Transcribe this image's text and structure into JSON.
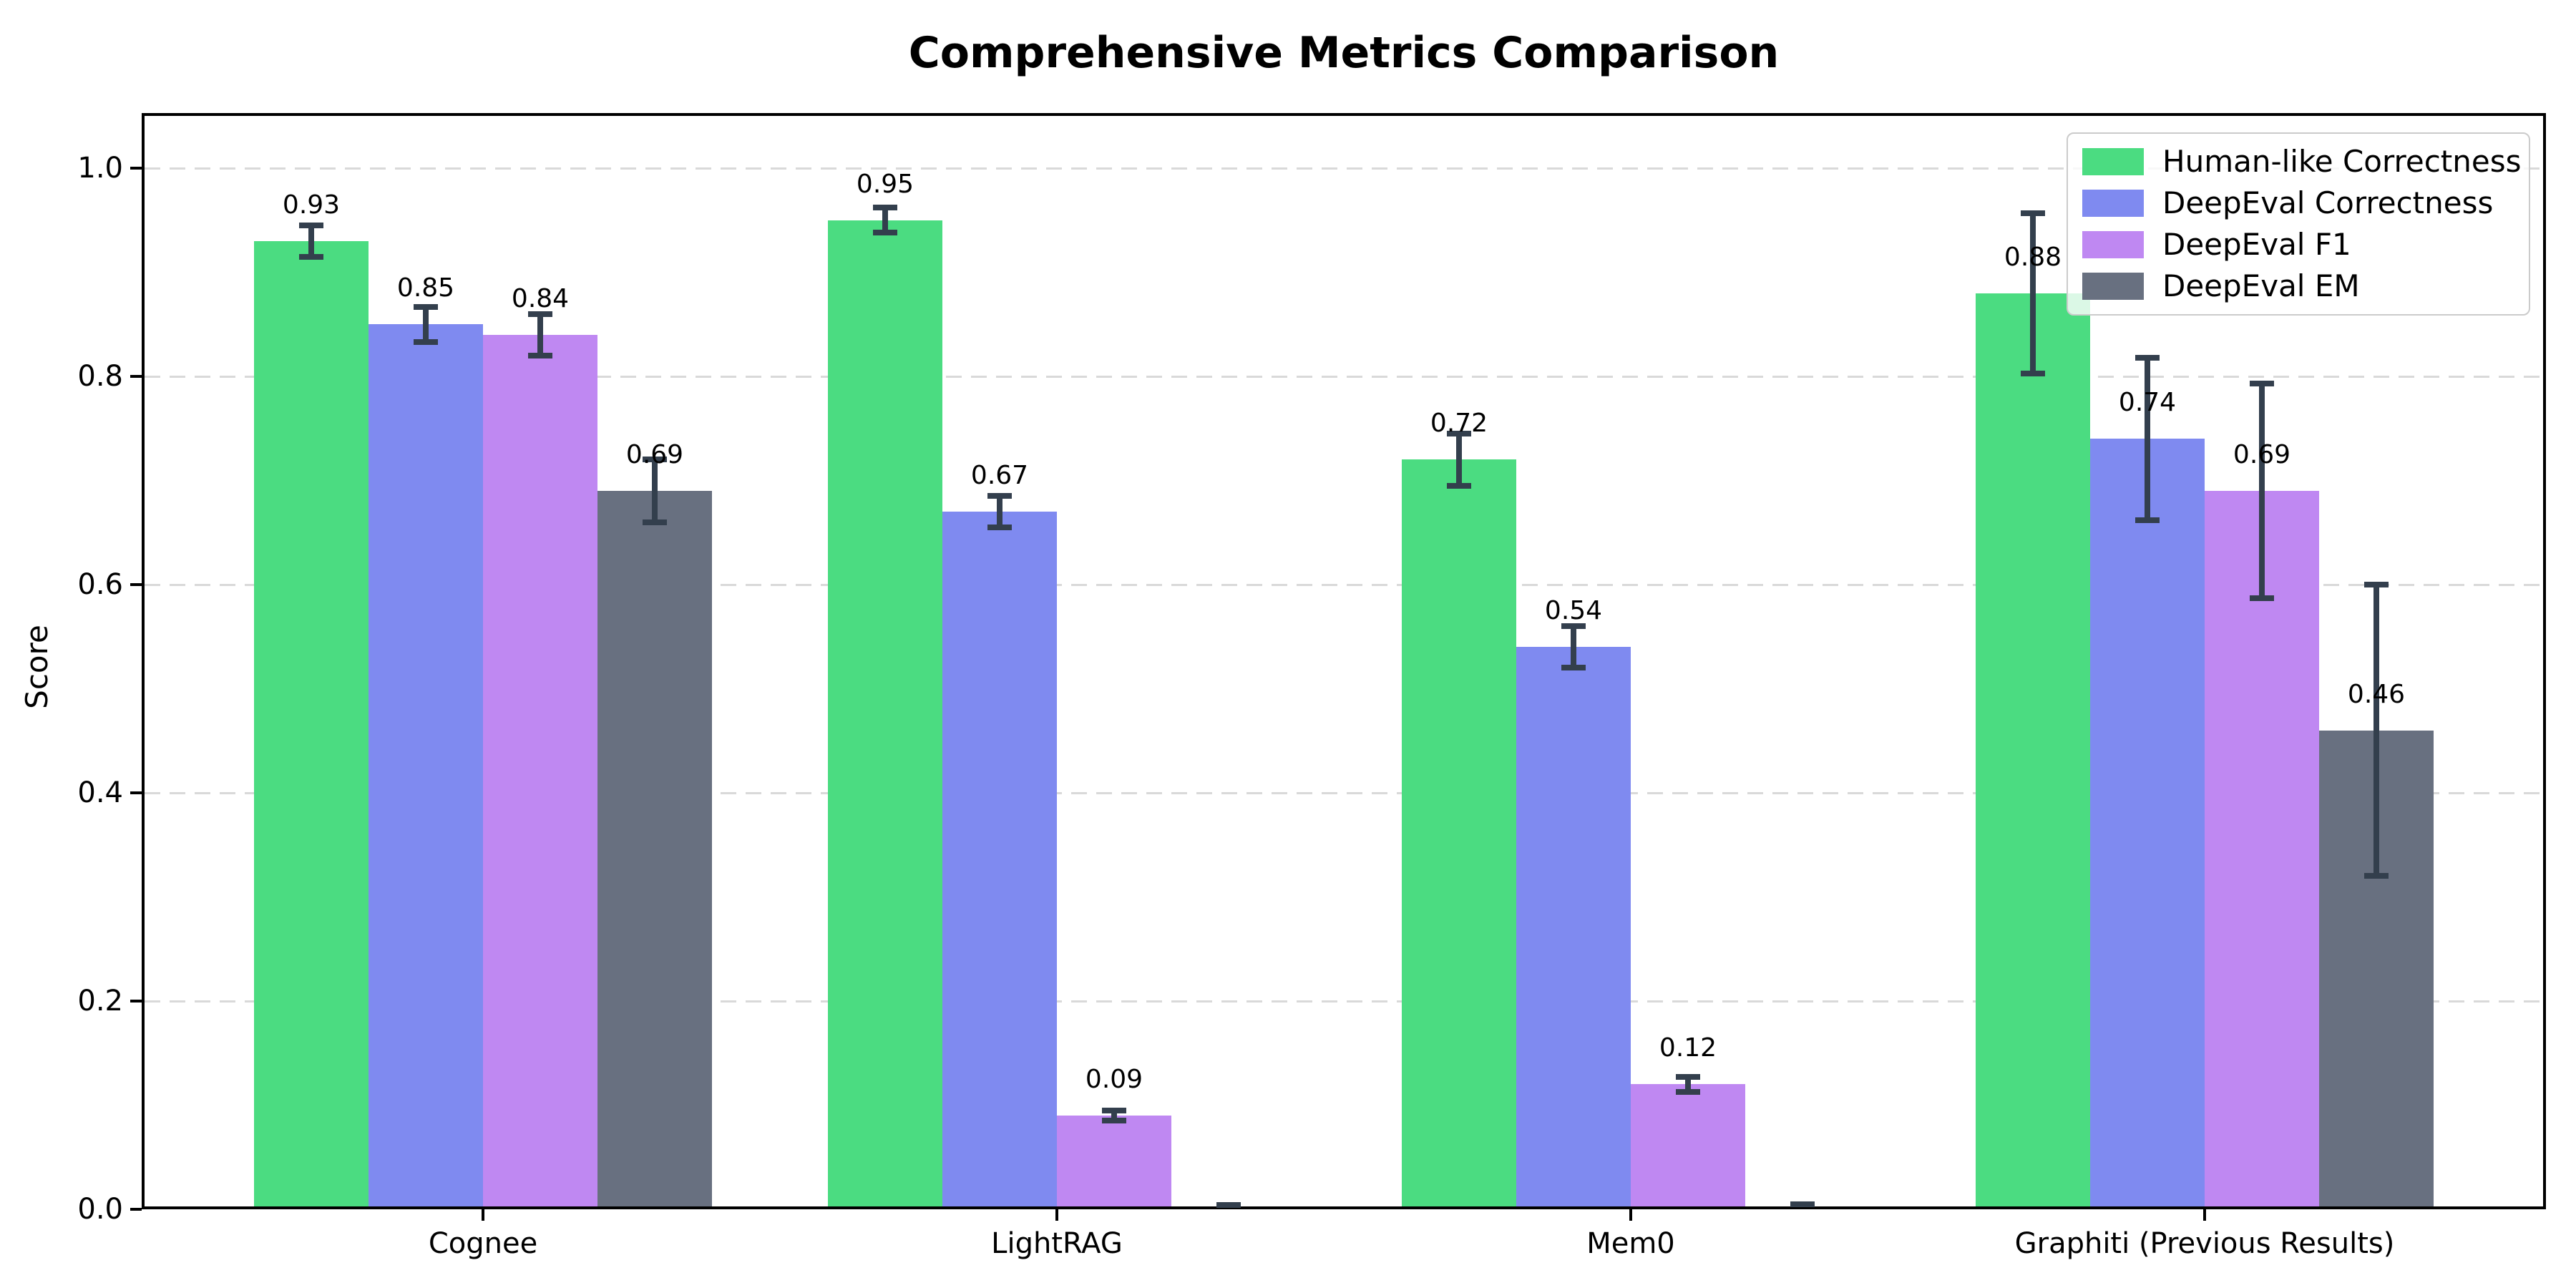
{
  "figure": {
    "title": "Comprehensive Metrics Comparison",
    "ylabel": "Score",
    "background": "#ffffff",
    "axis_color": "#000000",
    "grid_color": "#d9d9d9",
    "error_bar_color": "#333f4d"
  },
  "chart_data": {
    "type": "bar",
    "title": "Comprehensive Metrics Comparison",
    "xlabel": "",
    "ylabel": "Score",
    "categories": [
      "Cognee",
      "LightRAG",
      "Mem0",
      "Graphiti (Previous Results)"
    ],
    "series": [
      {
        "name": "Human-like Correctness",
        "color": "#4bdc81",
        "values": [
          0.93,
          0.95,
          0.72,
          0.88
        ],
        "errors": [
          0.015,
          0.012,
          0.025,
          0.077
        ],
        "labels": [
          "0.93",
          "0.95",
          "0.72",
          "0.88"
        ]
      },
      {
        "name": "DeepEval Correctness",
        "color": "#7f8af0",
        "values": [
          0.85,
          0.67,
          0.54,
          0.74
        ],
        "errors": [
          0.017,
          0.015,
          0.02,
          0.078
        ],
        "labels": [
          "0.85",
          "0.67",
          "0.54",
          "0.74"
        ]
      },
      {
        "name": "DeepEval F1",
        "color": "#bf88f2",
        "values": [
          0.84,
          0.09,
          0.12,
          0.69
        ],
        "errors": [
          0.02,
          0.005,
          0.007,
          0.103
        ],
        "labels": [
          "0.84",
          "0.09",
          "0.12",
          "0.69"
        ]
      },
      {
        "name": "DeepEval EM",
        "color": "#687080",
        "values": [
          0.69,
          0.0,
          0.0,
          0.46
        ],
        "errors": [
          0.03,
          0.004,
          0.005,
          0.14
        ],
        "labels": [
          "0.69",
          null,
          null,
          "0.46"
        ]
      }
    ],
    "yticks": [
      {
        "value": 0.0,
        "label": "0.0"
      },
      {
        "value": 0.2,
        "label": "0.2"
      },
      {
        "value": 0.4,
        "label": "0.4"
      },
      {
        "value": 0.6,
        "label": "0.6"
      },
      {
        "value": 0.8,
        "label": "0.8"
      },
      {
        "value": 1.0,
        "label": "1.0"
      }
    ],
    "ylim": [
      0,
      1.055
    ],
    "grid": {
      "axis": "y",
      "style": "dashed",
      "color": "#d9d9d9"
    },
    "legend": {
      "position": "upper right",
      "entries": [
        "Human-like Correctness",
        "DeepEval Correctness",
        "DeepEval F1",
        "DeepEval EM"
      ]
    },
    "error_bar_color": "#333f4d"
  }
}
